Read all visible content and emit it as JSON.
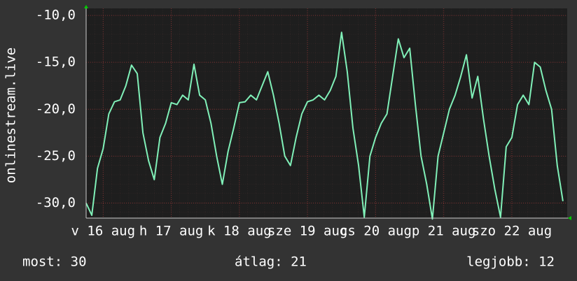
{
  "chart_data": {
    "type": "line",
    "y_label": "onlinestream.live",
    "x": [
      0,
      2,
      4,
      6,
      8,
      10,
      12,
      14,
      16,
      18,
      20,
      22,
      24,
      26,
      28,
      30,
      32,
      34,
      36,
      38,
      40,
      42,
      44,
      46,
      48,
      50,
      52,
      54,
      56,
      58,
      60,
      62,
      64,
      66,
      68,
      70,
      72,
      74,
      76,
      78,
      80,
      82,
      84,
      86,
      88,
      90,
      92,
      94,
      96,
      98,
      100,
      102,
      104,
      106,
      108,
      110,
      112,
      114,
      116,
      118,
      120,
      122,
      124,
      126,
      128,
      130,
      132,
      134,
      136,
      138,
      140,
      142,
      144,
      146,
      148,
      150,
      152,
      154,
      156,
      158,
      160,
      162,
      164,
      166,
      168
    ],
    "series": [
      {
        "color": "#80f0b8",
        "values": [
          -30,
          -31.3,
          -26.3,
          -24.2,
          -20.5,
          -19.2,
          -19,
          -17.5,
          -15.3,
          -16.2,
          -22.5,
          -25.5,
          -27.5,
          -23,
          -21.5,
          -19.3,
          -19.5,
          -18.5,
          -19,
          -15.2,
          -18.5,
          -19,
          -21.5,
          -25,
          -28,
          -24.5,
          -22,
          -19.3,
          -19.2,
          -18.5,
          -19,
          -17.5,
          -16,
          -18.5,
          -21.5,
          -25,
          -26,
          -23,
          -20.5,
          -19.2,
          -19,
          -18.5,
          -19,
          -18,
          -16.5,
          -11.8,
          -16,
          -22,
          -26,
          -31.5,
          -25,
          -23,
          -21.5,
          -20.5,
          -16.5,
          -12.5,
          -14.5,
          -13.5,
          -19.5,
          -25,
          -28,
          -31.7,
          -25,
          -22.5,
          -20,
          -18.5,
          -16.5,
          -14.2,
          -18.8,
          -16.5,
          -21,
          -25,
          -28.5,
          -31.5,
          -24,
          -23,
          -19.5,
          -18.5,
          -19.5,
          -15,
          -15.5,
          -18,
          -20,
          -26,
          -29.8
        ]
      }
    ],
    "xlim": [
      0,
      169.5
    ],
    "ylim": [
      -31.6,
      -9.25
    ],
    "yticks": [
      {
        "value": -10,
        "label": "-10,0"
      },
      {
        "value": -15,
        "label": "-15,0"
      },
      {
        "value": -20,
        "label": "-20,0"
      },
      {
        "value": -25,
        "label": "-25,0"
      },
      {
        "value": -30,
        "label": "-30,0"
      }
    ],
    "xticks": [
      {
        "value": 6,
        "label": "v 16 aug"
      },
      {
        "value": 30,
        "label": "h 17 aug"
      },
      {
        "value": 54,
        "label": "k 18 aug"
      },
      {
        "value": 78,
        "label": "sze 19 aug"
      },
      {
        "value": 102,
        "label": "cs 20 aug"
      },
      {
        "value": 126,
        "label": "p 21 aug"
      },
      {
        "value": 150,
        "label": "szo 22 aug"
      }
    ],
    "grid": true
  },
  "footer": {
    "current": "most: 30",
    "average": "átlag: 21",
    "best": "legjobb: 12"
  }
}
